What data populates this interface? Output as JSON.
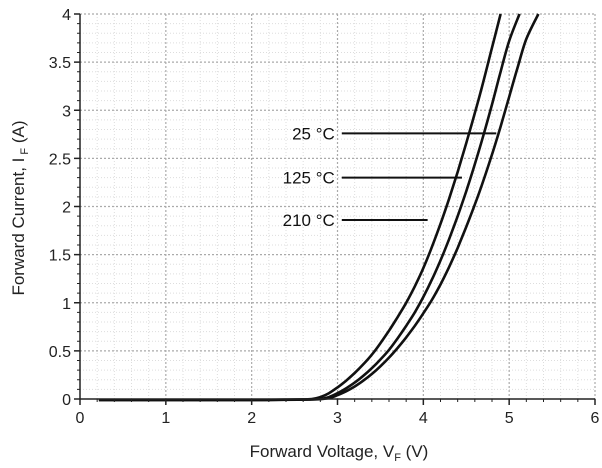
{
  "chart_data": {
    "type": "line",
    "title": "",
    "xlabel": {
      "main": "Forward Voltage, V",
      "sub": "F",
      "unit": " (V)"
    },
    "ylabel": {
      "main": "Forward Current, I",
      "sub": " F",
      "unit": " (A)"
    },
    "xlim": [
      0,
      6
    ],
    "ylim": [
      0,
      4
    ],
    "xticks": [
      "0",
      "1",
      "2",
      "3",
      "4",
      "5",
      "6"
    ],
    "yticks": [
      "0",
      "0.5",
      "1",
      "1.5",
      "2",
      "2.5",
      "3",
      "3.5",
      "4"
    ],
    "grid": true,
    "series": [
      {
        "name": "25 °C",
        "x": [
          0.22,
          1.0,
          2.0,
          2.5,
          2.7,
          2.8,
          2.9,
          3.0,
          3.1,
          3.2,
          3.3,
          3.4,
          3.5,
          3.6,
          3.7,
          3.8,
          3.9,
          4.0,
          4.1,
          4.2,
          4.3,
          4.4,
          4.5,
          4.6,
          4.7,
          4.8,
          4.9
        ],
        "y": [
          -0.01,
          -0.01,
          -0.01,
          -0.005,
          0.0,
          0.02,
          0.06,
          0.12,
          0.19,
          0.27,
          0.36,
          0.46,
          0.58,
          0.71,
          0.85,
          1.0,
          1.17,
          1.36,
          1.58,
          1.82,
          2.08,
          2.36,
          2.66,
          2.97,
          3.3,
          3.65,
          4.0
        ]
      },
      {
        "name": "125 °C",
        "x": [
          0.22,
          1.0,
          2.0,
          2.6,
          2.8,
          2.9,
          3.0,
          3.1,
          3.2,
          3.3,
          3.4,
          3.5,
          3.6,
          3.7,
          3.8,
          3.9,
          4.0,
          4.1,
          4.2,
          4.3,
          4.4,
          4.5,
          4.6,
          4.7,
          4.8,
          4.9,
          5.0,
          5.12
        ],
        "y": [
          -0.01,
          -0.01,
          -0.01,
          -0.005,
          0.0,
          0.02,
          0.06,
          0.11,
          0.17,
          0.24,
          0.32,
          0.41,
          0.51,
          0.63,
          0.76,
          0.9,
          1.06,
          1.24,
          1.44,
          1.66,
          1.9,
          2.16,
          2.44,
          2.74,
          3.06,
          3.4,
          3.72,
          4.0
        ]
      },
      {
        "name": "210 °C",
        "x": [
          0.22,
          1.0,
          2.0,
          2.7,
          2.9,
          3.0,
          3.1,
          3.2,
          3.3,
          3.4,
          3.5,
          3.6,
          3.7,
          3.8,
          3.9,
          4.0,
          4.1,
          4.2,
          4.3,
          4.4,
          4.5,
          4.6,
          4.7,
          4.8,
          4.9,
          5.0,
          5.1,
          5.2,
          5.34
        ],
        "y": [
          -0.01,
          -0.01,
          -0.01,
          -0.005,
          0.01,
          0.04,
          0.08,
          0.13,
          0.19,
          0.26,
          0.34,
          0.43,
          0.53,
          0.64,
          0.76,
          0.89,
          1.03,
          1.19,
          1.37,
          1.57,
          1.79,
          2.02,
          2.27,
          2.54,
          2.83,
          3.14,
          3.45,
          3.74,
          4.0
        ]
      }
    ],
    "annotations": [
      {
        "text": "25 °C",
        "x0": 3.05,
        "x1": 4.85,
        "y": 2.76
      },
      {
        "text": "125 °C",
        "x0": 3.05,
        "x1": 4.45,
        "y": 2.3
      },
      {
        "text": "210 °C",
        "x0": 3.05,
        "x1": 4.05,
        "y": 1.86
      }
    ],
    "colors": {
      "line": "#111111",
      "grid_major": "#aaaaaa",
      "grid_minor": "#dddddd",
      "axis": "#222222"
    }
  }
}
